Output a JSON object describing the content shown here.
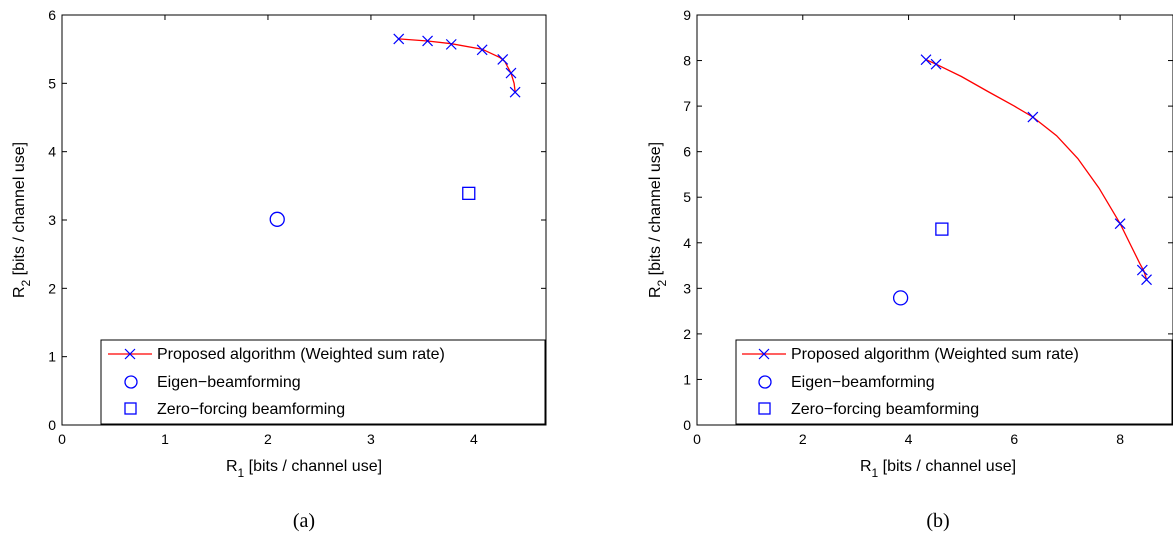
{
  "chart_data": [
    {
      "type": "scatter",
      "caption": "(a)",
      "xlabel": "R",
      "xlabel_sub": "1",
      "xlabel_suffix": " [bits / channel use]",
      "ylabel": "R",
      "ylabel_sub": "2",
      "ylabel_suffix": " [bits / channel use]",
      "xlim": [
        0,
        4.7
      ],
      "ylim": [
        0,
        6
      ],
      "xticks": [
        0,
        1,
        2,
        3,
        4
      ],
      "yticks": [
        0,
        1,
        2,
        3,
        4,
        5,
        6
      ],
      "grid": false,
      "legend_position": "bottom-right",
      "series": [
        {
          "name": "Proposed algorithm (Weighted sum rate)",
          "marker": "x",
          "line_color": "#ff0000",
          "marker_color": "#0000ff",
          "curve": [
            [
              3.27,
              5.65
            ],
            [
              3.55,
              5.62
            ],
            [
              3.78,
              5.58
            ],
            [
              4.08,
              5.5
            ],
            [
              4.25,
              5.38
            ],
            [
              4.3,
              5.32
            ],
            [
              4.36,
              5.15
            ],
            [
              4.39,
              5.0
            ],
            [
              4.4,
              4.88
            ]
          ],
          "markers": [
            [
              3.27,
              5.65
            ],
            [
              3.55,
              5.62
            ],
            [
              3.78,
              5.57
            ],
            [
              4.08,
              5.49
            ],
            [
              4.28,
              5.35
            ],
            [
              4.36,
              5.15
            ],
            [
              4.4,
              4.87
            ]
          ]
        },
        {
          "name": "Eigen−beamforming",
          "marker": "o",
          "marker_color": "#0000ff",
          "markers": [
            [
              2.09,
              3.01
            ]
          ]
        },
        {
          "name": "Zero−forcing beamforming",
          "marker": "s",
          "marker_color": "#0000ff",
          "markers": [
            [
              3.95,
              3.39
            ]
          ]
        }
      ]
    },
    {
      "type": "scatter",
      "caption": "(b)",
      "xlabel": "R",
      "xlabel_sub": "1",
      "xlabel_suffix": " [bits / channel use]",
      "ylabel": "R",
      "ylabel_sub": "2",
      "ylabel_suffix": " [bits / channel use]",
      "xlim": [
        0,
        9
      ],
      "ylim": [
        0,
        9
      ],
      "xticks": [
        0,
        2,
        4,
        6,
        8
      ],
      "yticks": [
        0,
        1,
        2,
        3,
        4,
        5,
        6,
        7,
        8,
        9
      ],
      "grid": false,
      "legend_position": "bottom-right",
      "series": [
        {
          "name": "Proposed algorithm (Weighted sum rate)",
          "marker": "x",
          "line_color": "#ff0000",
          "marker_color": "#0000ff",
          "curve": [
            [
              4.33,
              8.02
            ],
            [
              4.52,
              7.92
            ],
            [
              5.0,
              7.65
            ],
            [
              5.5,
              7.32
            ],
            [
              6.0,
              7.0
            ],
            [
              6.35,
              6.76
            ],
            [
              6.8,
              6.35
            ],
            [
              7.2,
              5.85
            ],
            [
              7.6,
              5.2
            ],
            [
              8.0,
              4.42
            ],
            [
              8.2,
              3.95
            ],
            [
              8.37,
              3.55
            ],
            [
              8.45,
              3.38
            ],
            [
              8.5,
              3.19
            ]
          ],
          "markers": [
            [
              4.33,
              8.02
            ],
            [
              4.52,
              7.92
            ],
            [
              6.35,
              6.76
            ],
            [
              8.0,
              4.42
            ],
            [
              8.42,
              3.4
            ],
            [
              8.5,
              3.19
            ]
          ]
        },
        {
          "name": "Eigen−beamforming",
          "marker": "o",
          "marker_color": "#0000ff",
          "markers": [
            [
              3.85,
              2.79
            ]
          ]
        },
        {
          "name": "Zero−forcing beamforming",
          "marker": "s",
          "marker_color": "#0000ff",
          "markers": [
            [
              4.63,
              4.3
            ]
          ]
        }
      ]
    }
  ]
}
